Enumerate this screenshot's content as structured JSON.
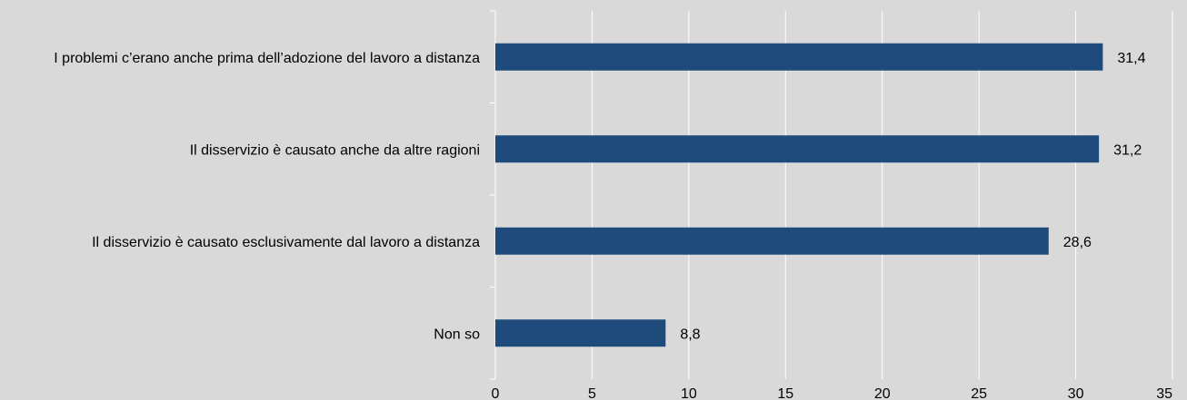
{
  "chart_data": {
    "type": "bar",
    "orientation": "horizontal",
    "categories": [
      "I problemi c’erano anche prima dell’adozione del lavoro a distanza",
      "Il disservizio è causato anche da altre ragioni",
      "Il disservizio è causato esclusivamente dal lavoro a distanza",
      "Non so"
    ],
    "values": [
      31.4,
      31.2,
      28.6,
      8.8
    ],
    "value_labels": [
      "31,4",
      "31,2",
      "28,6",
      "8,8"
    ],
    "x_ticks": [
      "0",
      "5",
      "10",
      "15",
      "20",
      "25",
      "30",
      "35"
    ],
    "xlim": [
      0,
      35
    ],
    "title": "",
    "xlabel": "",
    "ylabel": "",
    "grid": true,
    "legend": "none",
    "colors": {
      "background": "#d9d9d9",
      "bar": "#1f4a7c",
      "grid": "#ffffff",
      "text": "#000000"
    }
  }
}
